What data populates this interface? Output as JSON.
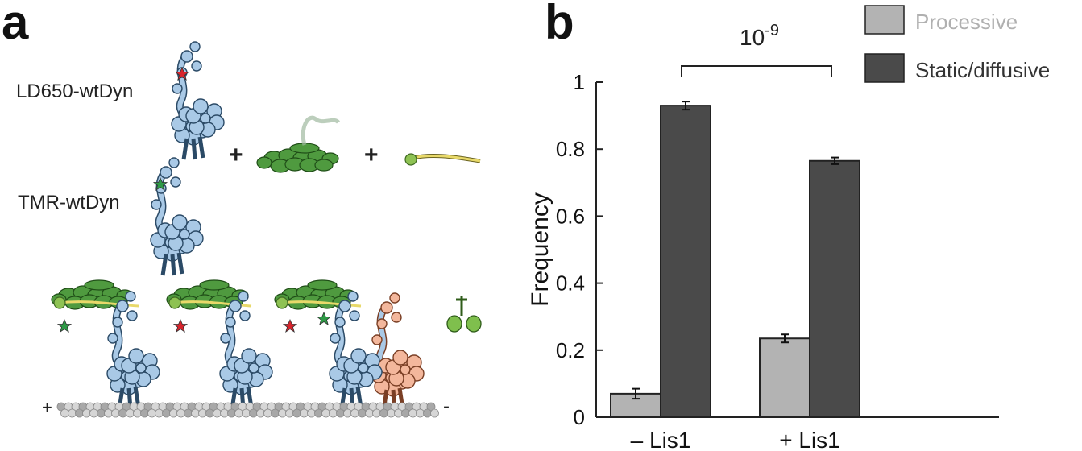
{
  "panels": {
    "a": "a",
    "b": "b"
  },
  "panel_a": {
    "labels": {
      "ld650": "LD650-wtDyn",
      "tmr": "TMR-wtDyn",
      "plus_sign": "+",
      "mt_plus": "+",
      "mt_minus": "-"
    },
    "colors": {
      "dynein": "#a9c9e6",
      "dynein_outline": "#2b4a66",
      "dynein_alt": "#f3b79c",
      "dynactin": "#4f9a3f",
      "adaptor": "#e8d96a",
      "lis1": "#7fbf4d",
      "microtubule": "#c8c8c8",
      "star_red": "#d8242c",
      "star_green": "#2e9a46"
    }
  },
  "chart_data": {
    "type": "bar",
    "categories": [
      "– Lis1",
      "+ Lis1"
    ],
    "series": [
      {
        "name": "Processive",
        "color": "#b3b3b3",
        "values": [
          0.07,
          0.235
        ],
        "errors": [
          0.015,
          0.012
        ]
      },
      {
        "name": "Static/diffusive",
        "color": "#4a4a4a",
        "values": [
          0.93,
          0.765
        ],
        "errors": [
          0.012,
          0.01
        ]
      }
    ],
    "ylabel": "Frequency",
    "xlabel": "",
    "ylim": [
      0,
      1
    ],
    "yticks": [
      0,
      0.2,
      0.4,
      0.6,
      0.8,
      1
    ],
    "ytick_labels": [
      "0",
      "0.2",
      "0.4",
      "0.6",
      "0.8",
      "1"
    ],
    "annotation": {
      "base": "10",
      "exponent": "-9"
    },
    "legend_placement": "top-right",
    "legend_text_colors": [
      "#b0b0b0",
      "#333333"
    ],
    "grid": false
  }
}
